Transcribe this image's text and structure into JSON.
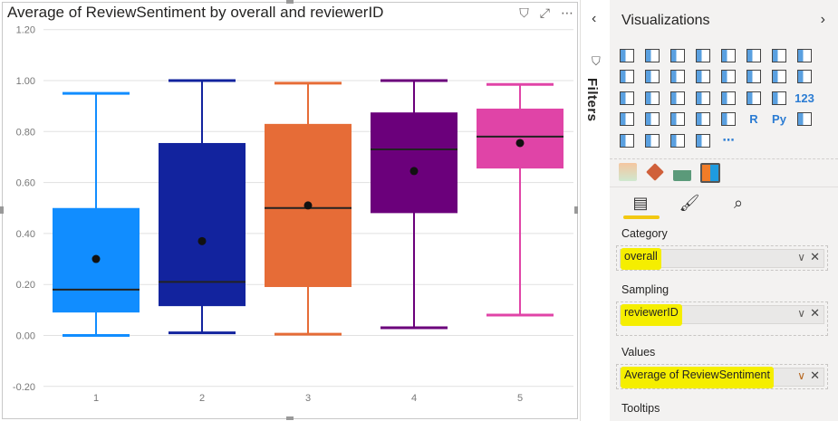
{
  "visual": {
    "title": "Average of ReviewSentiment by overall and reviewerID",
    "icons": [
      "filter-icon",
      "focus-mode-icon",
      "more-options-icon"
    ],
    "more_label": "⋯"
  },
  "chart_data": {
    "type": "boxplot",
    "title": "Average of ReviewSentiment by overall and reviewerID",
    "categories": [
      "1",
      "2",
      "3",
      "4",
      "5"
    ],
    "ylim": [
      -0.2,
      1.2
    ],
    "yticks": [
      "-0.20",
      "0.00",
      "0.20",
      "0.40",
      "0.60",
      "0.80",
      "1.00",
      "1.20"
    ],
    "grid": true,
    "series": [
      {
        "category": "1",
        "color": "#118DFF",
        "min": 0.0,
        "q1": 0.09,
        "median": 0.18,
        "q3": 0.5,
        "max": 0.95,
        "mean": 0.3
      },
      {
        "category": "2",
        "color": "#12239E",
        "min": 0.01,
        "q1": 0.115,
        "median": 0.21,
        "q3": 0.755,
        "max": 1.0,
        "mean": 0.37
      },
      {
        "category": "3",
        "color": "#E66C37",
        "min": 0.005,
        "q1": 0.19,
        "median": 0.5,
        "q3": 0.83,
        "max": 0.99,
        "mean": 0.51
      },
      {
        "category": "4",
        "color": "#6B007B",
        "min": 0.03,
        "q1": 0.48,
        "median": 0.73,
        "q3": 0.875,
        "max": 1.0,
        "mean": 0.645
      },
      {
        "category": "5",
        "color": "#E044A7",
        "min": 0.08,
        "q1": 0.655,
        "median": 0.78,
        "q3": 0.89,
        "max": 0.985,
        "mean": 0.755
      }
    ]
  },
  "filters_pane": {
    "label": "Filters",
    "collapse": "‹"
  },
  "visualizations": {
    "title": "Visualizations",
    "expand": "›",
    "gallery": [
      "stacked-bar",
      "stacked-column",
      "clustered-bar",
      "clustered-column",
      "100-bar",
      "100-column",
      "line",
      "area",
      "stacked-area",
      "line-column",
      "line-clustered",
      "ribbon",
      "waterfall",
      "funnel",
      "scatter",
      "pie",
      "donut",
      "treemap",
      "map",
      "filled-map",
      "shape-map",
      "azure-map",
      "gauge",
      "card",
      "multi-row-card",
      "kpi",
      "slicer",
      "table",
      "matrix",
      "R",
      "Py",
      "key-influencers",
      "decomposition-tree",
      "qa",
      "smart-narrative",
      "paginated",
      "more"
    ],
    "gallery_text": {
      "R": "R",
      "Py": "Py",
      "more": "⋯",
      "card": "123"
    },
    "custom": [
      "custom-visual-1",
      "custom-visual-2",
      "custom-visual-3",
      "box-whisker-visual"
    ],
    "tabs": [
      "fields-tab",
      "format-tab",
      "analytics-tab"
    ],
    "wells": [
      {
        "label": "Category",
        "field": "overall"
      },
      {
        "label": "Sampling",
        "field": "reviewerID"
      },
      {
        "label": "Values",
        "field": "Average of ReviewSentiment"
      },
      {
        "label": "Tooltips",
        "field": null
      }
    ],
    "highlight_color": "#F5EE00"
  }
}
